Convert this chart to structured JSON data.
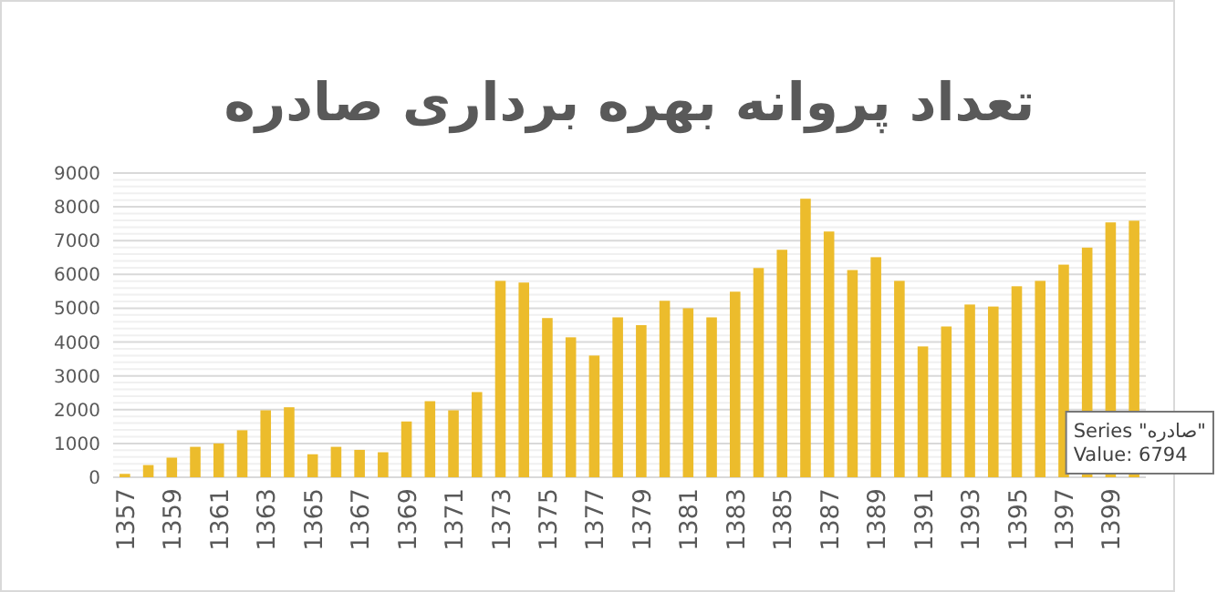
{
  "chart_data": {
    "type": "bar",
    "title": "تعداد پروانه بهره برداری صادره",
    "categories": [
      "1357",
      null,
      "1359",
      null,
      "1361",
      null,
      "1363",
      null,
      "1365",
      null,
      "1367",
      null,
      "1369",
      null,
      "1371",
      null,
      "1373",
      null,
      "1375",
      null,
      "1377",
      null,
      "1379",
      null,
      "1381",
      null,
      "1383",
      null,
      "1385",
      null,
      "1387",
      null,
      "1389",
      null,
      "1391",
      null,
      "1393",
      null,
      "1395",
      null,
      "1397",
      null,
      "1399",
      null
    ],
    "series": [
      {
        "color": "#ecbc2c",
        "values": [
          100,
          360,
          580,
          900,
          1000,
          1390,
          1980,
          2070,
          680,
          900,
          810,
          740,
          1650,
          2250,
          1980,
          2520,
          5810,
          5760,
          4710,
          4140,
          3600,
          4730,
          4500,
          5220,
          5000,
          4730,
          5490,
          6190,
          6730,
          8240,
          7270,
          6130,
          6510,
          5810,
          3870,
          4460,
          5110,
          5050,
          5650,
          5810,
          6290,
          6794,
          7540,
          7590
        ]
      }
    ],
    "ylim": [
      0,
      9000
    ],
    "yticks": [
      0,
      {
        "value": 200,
        "label": null
      },
      {
        "value": 400,
        "label": null
      },
      {
        "value": 600,
        "label": null
      },
      {
        "value": 800,
        "label": null
      },
      1000,
      {
        "value": 1200,
        "label": null
      },
      {
        "value": 1400,
        "label": null
      },
      {
        "value": 1600,
        "label": null
      },
      {
        "value": 1800,
        "label": null
      },
      2000,
      {
        "value": 2200,
        "label": null
      },
      {
        "value": 2400,
        "label": null
      },
      {
        "value": 2600,
        "label": null
      },
      {
        "value": 2800,
        "label": null
      },
      3000,
      {
        "value": 3200,
        "label": null
      },
      {
        "value": 3400,
        "label": null
      },
      {
        "value": 3600,
        "label": null
      },
      {
        "value": 3800,
        "label": null
      },
      4000,
      {
        "value": 4200,
        "label": null
      },
      {
        "value": 4400,
        "label": null
      },
      {
        "value": 4600,
        "label": null
      },
      {
        "value": 4800,
        "label": null
      },
      5000,
      {
        "value": 5200,
        "label": null
      },
      {
        "value": 5400,
        "label": null
      },
      {
        "value": 5600,
        "label": null
      },
      {
        "value": 5800,
        "label": null
      },
      6000,
      {
        "value": 6200,
        "label": null
      },
      {
        "value": 6400,
        "label": null
      },
      {
        "value": 6600,
        "label": null
      },
      {
        "value": 6800,
        "label": null
      },
      7000,
      {
        "value": 7200,
        "label": null
      },
      {
        "value": 7400,
        "label": null
      },
      {
        "value": 7600,
        "label": null
      },
      {
        "value": 7800,
        "label": null
      },
      8000,
      {
        "value": 8200,
        "label": null
      },
      {
        "value": 8400,
        "label": null
      },
      {
        "value": 8600,
        "label": null
      },
      {
        "value": 8800,
        "label": null
      },
      9000
    ],
    "grid": "y",
    "annotations": [
      "Series \"صادره\"",
      "Value: 6794"
    ]
  }
}
